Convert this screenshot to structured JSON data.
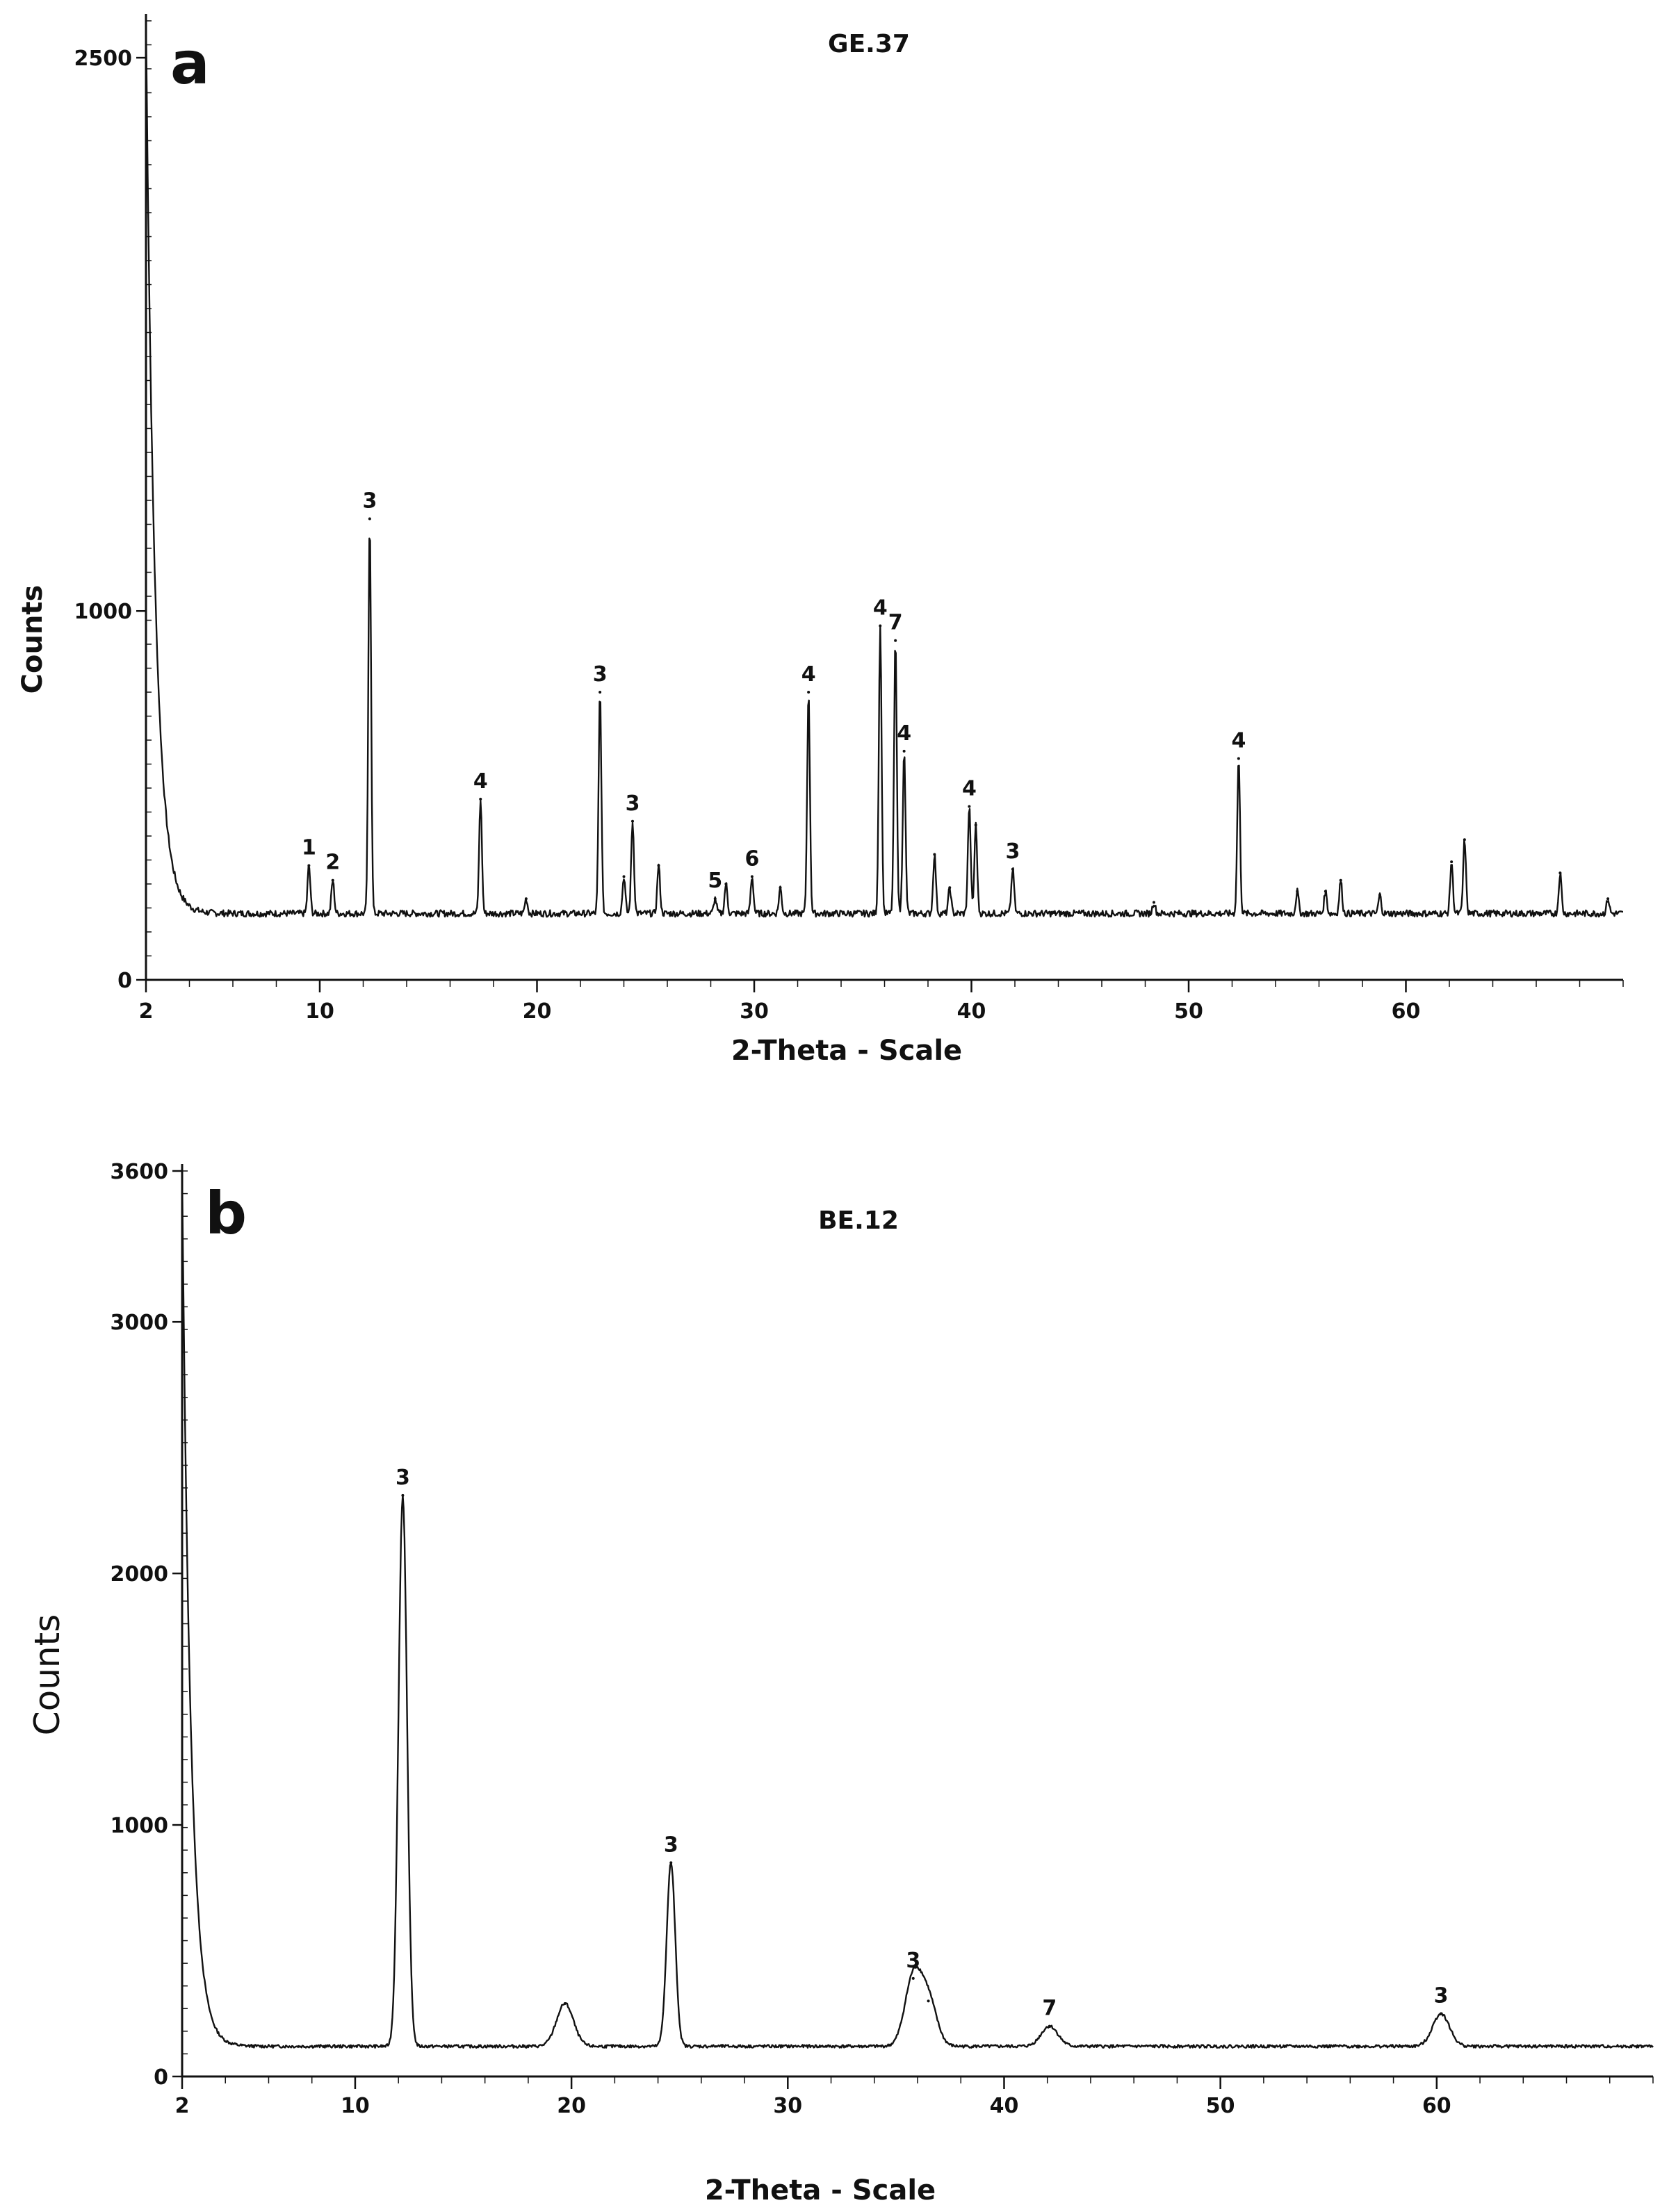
{
  "chart_data": [
    {
      "type": "line",
      "panel_label": "a",
      "title": "GE.37",
      "xlabel": "2-Theta - Scale",
      "ylabel": "Counts",
      "xlim": [
        2,
        70
      ],
      "ylim": [
        0,
        2600
      ],
      "x_ticks": [
        2,
        10,
        20,
        30,
        40,
        50,
        60
      ],
      "y_ticks": [
        0,
        1000,
        2500
      ],
      "baseline": 180,
      "low_angle_rise": {
        "start_x": 2,
        "start_y": 2600,
        "decay": 0.42
      },
      "peaks": [
        {
          "x": 9.5,
          "y": 310,
          "label": "1"
        },
        {
          "x": 10.6,
          "y": 270,
          "label": "2"
        },
        {
          "x": 12.3,
          "y": 1250,
          "label": "3"
        },
        {
          "x": 17.4,
          "y": 490,
          "label": "4"
        },
        {
          "x": 19.5,
          "y": 220,
          "label": ""
        },
        {
          "x": 22.9,
          "y": 780,
          "label": "3"
        },
        {
          "x": 24.0,
          "y": 280,
          "label": ""
        },
        {
          "x": 24.4,
          "y": 430,
          "label": "3"
        },
        {
          "x": 25.6,
          "y": 310,
          "label": ""
        },
        {
          "x": 28.2,
          "y": 220,
          "label": "5"
        },
        {
          "x": 28.7,
          "y": 260,
          "label": ""
        },
        {
          "x": 29.9,
          "y": 280,
          "label": "6"
        },
        {
          "x": 31.2,
          "y": 250,
          "label": ""
        },
        {
          "x": 32.5,
          "y": 780,
          "label": "4"
        },
        {
          "x": 35.8,
          "y": 960,
          "label": "4"
        },
        {
          "x": 36.5,
          "y": 920,
          "label": "7"
        },
        {
          "x": 36.9,
          "y": 620,
          "label": "4"
        },
        {
          "x": 38.3,
          "y": 340,
          "label": ""
        },
        {
          "x": 39.0,
          "y": 250,
          "label": ""
        },
        {
          "x": 39.9,
          "y": 470,
          "label": "4"
        },
        {
          "x": 40.2,
          "y": 420,
          "label": ""
        },
        {
          "x": 41.9,
          "y": 300,
          "label": "3"
        },
        {
          "x": 48.4,
          "y": 210,
          "label": ""
        },
        {
          "x": 52.3,
          "y": 600,
          "label": "4"
        },
        {
          "x": 55.0,
          "y": 240,
          "label": ""
        },
        {
          "x": 56.3,
          "y": 240,
          "label": ""
        },
        {
          "x": 57.0,
          "y": 270,
          "label": ""
        },
        {
          "x": 58.8,
          "y": 230,
          "label": ""
        },
        {
          "x": 62.1,
          "y": 320,
          "label": ""
        },
        {
          "x": 62.7,
          "y": 380,
          "label": ""
        },
        {
          "x": 67.1,
          "y": 290,
          "label": ""
        },
        {
          "x": 69.3,
          "y": 220,
          "label": ""
        }
      ]
    },
    {
      "type": "line",
      "panel_label": "b",
      "title": "BE.12",
      "xlabel": "2-Theta - Scale",
      "ylabel": "Counts",
      "xlim": [
        2,
        70
      ],
      "ylim": [
        0,
        3600
      ],
      "x_ticks": [
        2,
        10,
        20,
        30,
        40,
        50,
        60
      ],
      "y_ticks": [
        0,
        1000,
        2000,
        3000,
        3600
      ],
      "baseline": 120,
      "low_angle_rise": {
        "start_x": 2,
        "start_y": 3600,
        "decay": 0.4
      },
      "peaks": [
        {
          "x": 12.2,
          "y": 2310,
          "label": "3"
        },
        {
          "x": 19.7,
          "y": 290,
          "label": ""
        },
        {
          "x": 24.6,
          "y": 850,
          "label": "3"
        },
        {
          "x": 35.8,
          "y": 390,
          "label": "3"
        },
        {
          "x": 36.5,
          "y": 300,
          "label": ""
        },
        {
          "x": 42.1,
          "y": 200,
          "label": "7"
        },
        {
          "x": 60.2,
          "y": 250,
          "label": "3"
        }
      ]
    }
  ]
}
